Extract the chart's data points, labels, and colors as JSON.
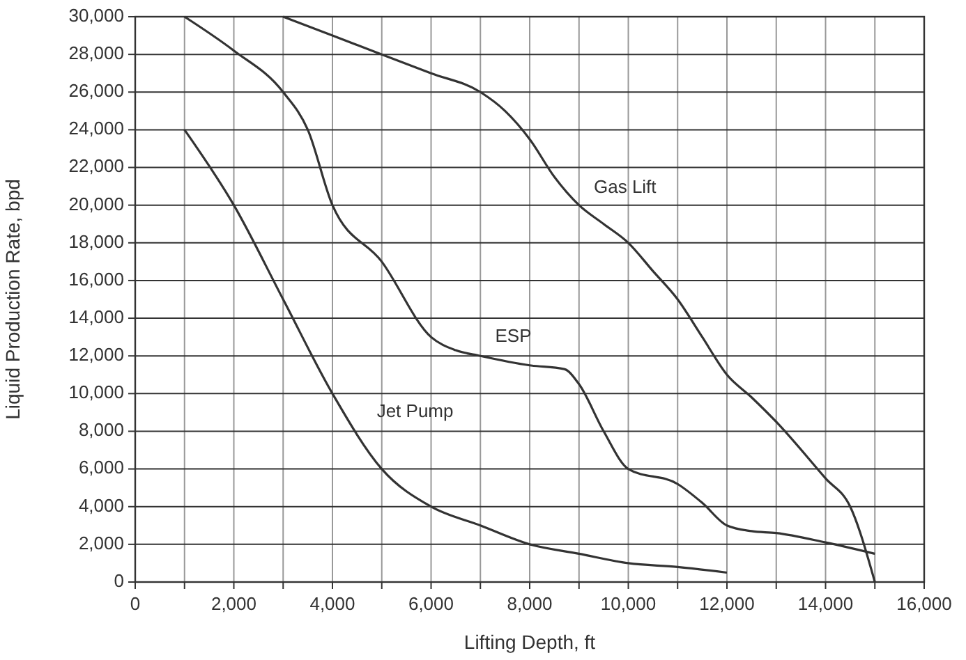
{
  "chart_data": {
    "type": "line",
    "xlabel": "Lifting Depth, ft",
    "ylabel": "Liquid Production Rate, bpd",
    "xlim": [
      0,
      16000
    ],
    "xticks": [
      0,
      {
        "value": 1000,
        "label": null
      },
      {
        "value": 2000,
        "label": "2,000"
      },
      {
        "value": 3000,
        "label": null
      },
      {
        "value": 4000,
        "label": "4,000"
      },
      {
        "value": 5000,
        "label": null
      },
      {
        "value": 6000,
        "label": "6,000"
      },
      {
        "value": 7000,
        "label": null
      },
      {
        "value": 8000,
        "label": "8,000"
      },
      {
        "value": 9000,
        "label": null
      },
      {
        "value": 10000,
        "label": "10,000"
      },
      {
        "value": 11000,
        "label": null
      },
      {
        "value": 12000,
        "label": "12,000"
      },
      {
        "value": 13000,
        "label": null
      },
      {
        "value": 14000,
        "label": "14,000"
      },
      {
        "value": 15000,
        "label": null
      },
      {
        "value": 16000,
        "label": "16,000"
      }
    ],
    "ylim": [
      0,
      30000
    ],
    "yticks": [
      0,
      {
        "value": 2000,
        "label": "2,000"
      },
      {
        "value": 4000,
        "label": "4,000"
      },
      {
        "value": 6000,
        "label": "6,000"
      },
      {
        "value": 8000,
        "label": "8,000"
      },
      {
        "value": 10000,
        "label": "10,000"
      },
      {
        "value": 12000,
        "label": "12,000"
      },
      {
        "value": 14000,
        "label": "14,000"
      },
      {
        "value": 16000,
        "label": "16,000"
      },
      {
        "value": 18000,
        "label": "18,000"
      },
      {
        "value": 20000,
        "label": "20,000"
      },
      {
        "value": 22000,
        "label": "22,000"
      },
      {
        "value": 24000,
        "label": "24,000"
      },
      {
        "value": 26000,
        "label": "26,000"
      },
      {
        "value": 28000,
        "label": "28,000"
      },
      {
        "value": 30000,
        "label": "30,000"
      }
    ],
    "grid": true,
    "marker": "none",
    "line_style": "solid",
    "series": [
      {
        "name": "Gas Lift",
        "color": "#333333",
        "x": [
          3000,
          4000,
          5000,
          6000,
          7000,
          7500,
          8000,
          8500,
          9000,
          9500,
          10000,
          10500,
          11000,
          11500,
          12000,
          12500,
          13000,
          14000,
          14500,
          15000
        ],
        "values": [
          30000,
          29000,
          28000,
          27000,
          26000,
          25000,
          23500,
          21500,
          20000,
          19000,
          18000,
          16500,
          15000,
          13000,
          11000,
          9800,
          8500,
          5500,
          4000,
          0
        ]
      },
      {
        "name": "ESP",
        "color": "#333333",
        "x": [
          1000,
          2000,
          3000,
          3500,
          4000,
          5000,
          6000,
          6500,
          7000,
          8000,
          8700,
          9000,
          9500,
          10000,
          11000,
          11500,
          12000,
          12500,
          13000,
          14000,
          15000
        ],
        "values": [
          30000,
          28200,
          26000,
          24000,
          20000,
          17000,
          13000,
          12300,
          12000,
          11500,
          11300,
          10500,
          8000,
          6000,
          5200,
          4200,
          3000,
          2700,
          2600,
          2100,
          1500
        ]
      },
      {
        "name": "Jet Pump",
        "color": "#333333",
        "x": [
          1000,
          2000,
          3000,
          4000,
          5000,
          6000,
          7000,
          8000,
          9000,
          10000,
          11000,
          12000
        ],
        "values": [
          24000,
          20000,
          15000,
          10000,
          6000,
          4000,
          3000,
          2000,
          1500,
          1000,
          800,
          500
        ]
      }
    ]
  }
}
